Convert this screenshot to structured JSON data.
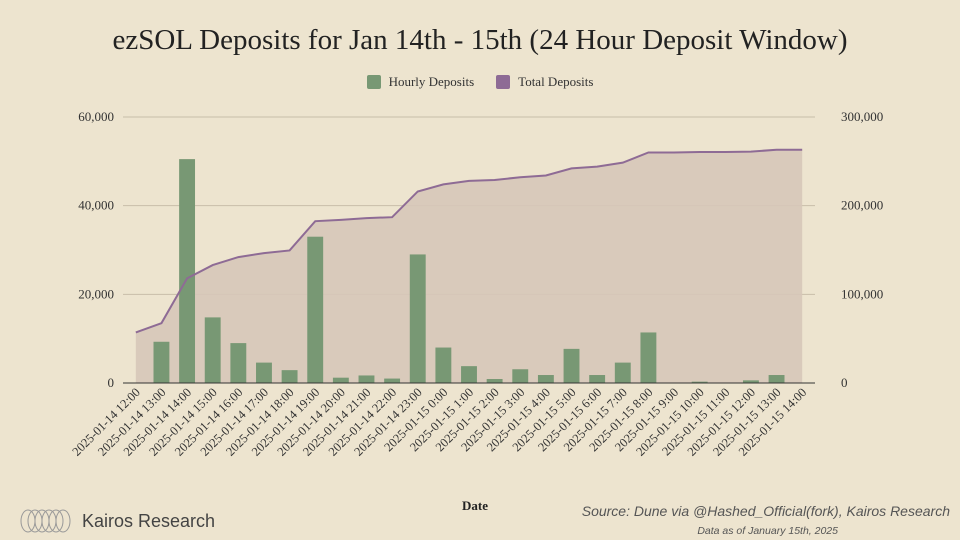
{
  "chart_data": {
    "type": "bar",
    "title": "ezSOL Deposits for Jan 14th - 15th (24 Hour Deposit Window)",
    "xlabel": "Date",
    "ylabel": "",
    "ylim": [
      0,
      60000
    ],
    "y2lim": [
      0,
      300000
    ],
    "y_ticks": [
      "0",
      "20,000",
      "40,000",
      "60,000"
    ],
    "y2_ticks": [
      "0",
      "100,000",
      "200,000",
      "300,000"
    ],
    "categories": [
      "2025-01-14 12:00",
      "2025-01-14 13:00",
      "2025-01-14 14:00",
      "2025-01-14 15:00",
      "2025-01-14 16:00",
      "2025-01-14 17:00",
      "2025-01-14 18:00",
      "2025-01-14 19:00",
      "2025-01-14 20:00",
      "2025-01-14 21:00",
      "2025-01-14 22:00",
      "2025-01-14 23:00",
      "2025-01-15 0:00",
      "2025-01-15 1:00",
      "2025-01-15 2:00",
      "2025-01-15 3:00",
      "2025-01-15 4:00",
      "2025-01-15 5:00",
      "2025-01-15 6:00",
      "2025-01-15 7:00",
      "2025-01-15 8:00",
      "2025-01-15 9:00",
      "2025-01-15 10:00",
      "2025-01-15 11:00",
      "2025-01-15 12:00",
      "2025-01-15 13:00",
      "2025-01-15 14:00"
    ],
    "series": [
      {
        "name": "Hourly Deposits",
        "type": "bar",
        "axis": "left",
        "color": "#789874",
        "values": [
          0,
          9300,
          50500,
          14800,
          9000,
          4600,
          2900,
          33000,
          1200,
          1700,
          1000,
          29000,
          8000,
          3800,
          900,
          3100,
          1800,
          7700,
          1800,
          4600,
          11400,
          100,
          300,
          100,
          600,
          1800,
          0
        ]
      },
      {
        "name": "Total Deposits",
        "type": "area",
        "axis": "right",
        "color": "#8e6b95",
        "fill": "#d6c6b8",
        "values": [
          57000,
          67500,
          118000,
          133000,
          142000,
          146500,
          149500,
          182500,
          184000,
          186000,
          187000,
          216000,
          224000,
          228000,
          229000,
          232000,
          234000,
          242000,
          244000,
          248500,
          260000,
          260000,
          260500,
          260500,
          261000,
          263000,
          263000
        ]
      }
    ]
  },
  "legend": {
    "hourly": "Hourly Deposits",
    "total": "Total Deposits"
  },
  "brand": {
    "name": "Kairos Research"
  },
  "footer": {
    "source": "Source: Dune via @Hashed_Official(fork), Kairos Research",
    "as_of": "Data as of January 15th, 2025"
  },
  "colors": {
    "background": "#ede4cf",
    "bar": "#789874",
    "line": "#8e6b95",
    "area": "#d6c6b8"
  }
}
